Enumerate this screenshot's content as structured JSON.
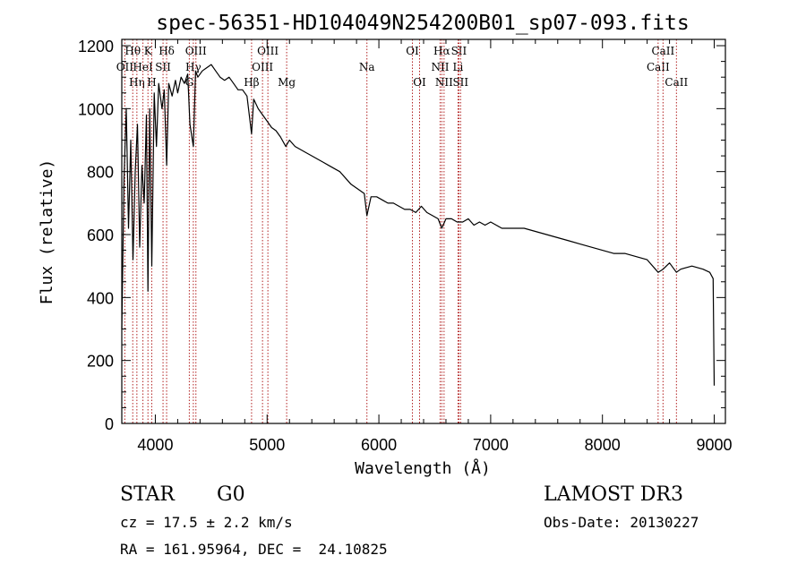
{
  "chart_data": {
    "type": "line",
    "title": "spec-56351-HD104049N254200B01_sp07-093.fits",
    "xlabel": "Wavelength (Å)",
    "ylabel": "Flux (relative)",
    "xlim": [
      3700,
      9100
    ],
    "ylim": [
      0,
      1220
    ],
    "xticks": [
      4000,
      5000,
      6000,
      7000,
      8000,
      9000
    ],
    "yticks": [
      0,
      200,
      400,
      600,
      800,
      1000,
      1200
    ],
    "grid": false,
    "line_color": "#000000",
    "marker_color": "#b22222",
    "series": [
      {
        "name": "spectrum",
        "x": [
          3700,
          3720,
          3740,
          3760,
          3780,
          3800,
          3820,
          3840,
          3860,
          3880,
          3900,
          3920,
          3934,
          3950,
          3968,
          3990,
          4010,
          4030,
          4060,
          4080,
          4101,
          4120,
          4150,
          4180,
          4200,
          4230,
          4260,
          4290,
          4310,
          4340,
          4360,
          4380,
          4420,
          4460,
          4500,
          4540,
          4580,
          4620,
          4660,
          4700,
          4740,
          4780,
          4820,
          4861,
          4880,
          4920,
          4960,
          5000,
          5040,
          5080,
          5120,
          5167,
          5200,
          5250,
          5300,
          5350,
          5400,
          5450,
          5500,
          5550,
          5600,
          5650,
          5700,
          5750,
          5790,
          5830,
          5870,
          5893,
          5930,
          5980,
          6030,
          6080,
          6130,
          6180,
          6230,
          6280,
          6330,
          6380,
          6430,
          6480,
          6530,
          6563,
          6600,
          6650,
          6700,
          6750,
          6800,
          6850,
          6900,
          6950,
          7000,
          7100,
          7200,
          7300,
          7400,
          7500,
          7600,
          7700,
          7800,
          7900,
          8000,
          8100,
          8200,
          8300,
          8400,
          8498,
          8542,
          8600,
          8662,
          8700,
          8800,
          8900,
          8960,
          8990,
          9000
        ],
        "y": [
          300,
          780,
          1000,
          620,
          900,
          520,
          800,
          950,
          560,
          820,
          700,
          980,
          420,
          1000,
          500,
          1050,
          880,
          1080,
          1000,
          1060,
          820,
          1080,
          1040,
          1090,
          1050,
          1100,
          1080,
          1110,
          950,
          880,
          1120,
          1100,
          1120,
          1130,
          1140,
          1120,
          1100,
          1090,
          1100,
          1080,
          1060,
          1060,
          1040,
          920,
          1030,
          1000,
          980,
          960,
          940,
          930,
          910,
          880,
          900,
          880,
          870,
          860,
          850,
          840,
          830,
          820,
          810,
          800,
          780,
          760,
          750,
          740,
          730,
          660,
          720,
          720,
          710,
          700,
          700,
          690,
          680,
          680,
          670,
          690,
          670,
          660,
          650,
          620,
          650,
          650,
          640,
          640,
          650,
          630,
          640,
          630,
          640,
          620,
          620,
          620,
          610,
          600,
          590,
          580,
          570,
          560,
          550,
          540,
          540,
          530,
          520,
          480,
          490,
          510,
          480,
          490,
          500,
          490,
          480,
          460,
          120
        ]
      }
    ],
    "line_markers": [
      {
        "label": "OII",
        "wavelength": 3727,
        "row": 2
      },
      {
        "label": "Hθ",
        "wavelength": 3798,
        "row": 1
      },
      {
        "label": "Hη",
        "wavelength": 3835,
        "row": 3
      },
      {
        "label": "HeI",
        "wavelength": 3889,
        "row": 2
      },
      {
        "label": "K",
        "wavelength": 3934,
        "row": 1
      },
      {
        "label": "H",
        "wavelength": 3968,
        "row": 3
      },
      {
        "label": "Hδ",
        "wavelength": 4101,
        "row": 1
      },
      {
        "label": "SII",
        "wavelength": 4069,
        "row": 2
      },
      {
        "label": "G",
        "wavelength": 4304,
        "row": 3
      },
      {
        "label": "Hγ",
        "wavelength": 4340,
        "row": 2
      },
      {
        "label": "OIII",
        "wavelength": 4363,
        "row": 1
      },
      {
        "label": "Hβ",
        "wavelength": 4861,
        "row": 3
      },
      {
        "label": "OIII",
        "wavelength": 4959,
        "row": 2
      },
      {
        "label": "OIII",
        "wavelength": 5007,
        "row": 1
      },
      {
        "label": "Mg",
        "wavelength": 5175,
        "row": 3
      },
      {
        "label": "Na",
        "wavelength": 5893,
        "row": 2
      },
      {
        "label": "OI",
        "wavelength": 6300,
        "row": 1
      },
      {
        "label": "OI",
        "wavelength": 6364,
        "row": 3
      },
      {
        "label": "NII",
        "wavelength": 6548,
        "row": 2
      },
      {
        "label": "Hα",
        "wavelength": 6563,
        "row": 1
      },
      {
        "label": "NII",
        "wavelength": 6583,
        "row": 3
      },
      {
        "label": "Li",
        "wavelength": 6708,
        "row": 2
      },
      {
        "label": "SII",
        "wavelength": 6716,
        "row": 1
      },
      {
        "label": "SII",
        "wavelength": 6731,
        "row": 3
      },
      {
        "label": "CaII",
        "wavelength": 8498,
        "row": 2
      },
      {
        "label": "CaII",
        "wavelength": 8542,
        "row": 1
      },
      {
        "label": "CaII",
        "wavelength": 8662,
        "row": 3
      }
    ]
  },
  "info": {
    "object_class": "STAR",
    "subclass": "G0",
    "survey": "LAMOST DR3",
    "cz": "cz = 17.5 ± 2.2 km/s",
    "obs_date": "Obs-Date: 20130227",
    "coords": "RA = 161.95964, DEC =  24.10825"
  }
}
